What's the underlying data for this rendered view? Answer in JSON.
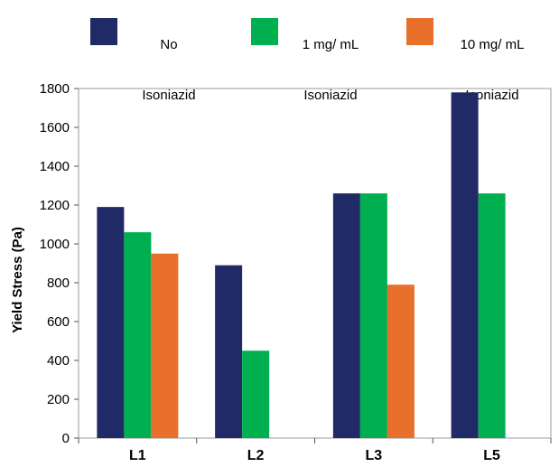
{
  "chart_data": {
    "type": "bar",
    "title": "",
    "xlabel": "",
    "ylabel": "Yield Stress (Pa)",
    "ylim": [
      0,
      1800
    ],
    "yticks": [
      0,
      200,
      400,
      600,
      800,
      1000,
      1200,
      1400,
      1600,
      1800
    ],
    "categories": [
      "L1",
      "L2",
      "L3",
      "L5"
    ],
    "grid": false,
    "legend_position": "top",
    "series": [
      {
        "name": "No Isoniazid",
        "legend_lines": [
          "No",
          "Isoniazid"
        ],
        "color": "#1f2a66",
        "values": [
          1190,
          890,
          1260,
          1780
        ]
      },
      {
        "name": "1 mg/ mL Isoniazid",
        "legend_lines": [
          "1 mg/ mL",
          "Isoniazid"
        ],
        "color": "#00b050",
        "values": [
          1060,
          450,
          1260,
          1260
        ]
      },
      {
        "name": "10 mg/ mL Isoniazid",
        "legend_lines": [
          "10 mg/ mL",
          "Isoniazid"
        ],
        "color": "#e8702a",
        "values": [
          950,
          null,
          790,
          null
        ]
      }
    ]
  }
}
